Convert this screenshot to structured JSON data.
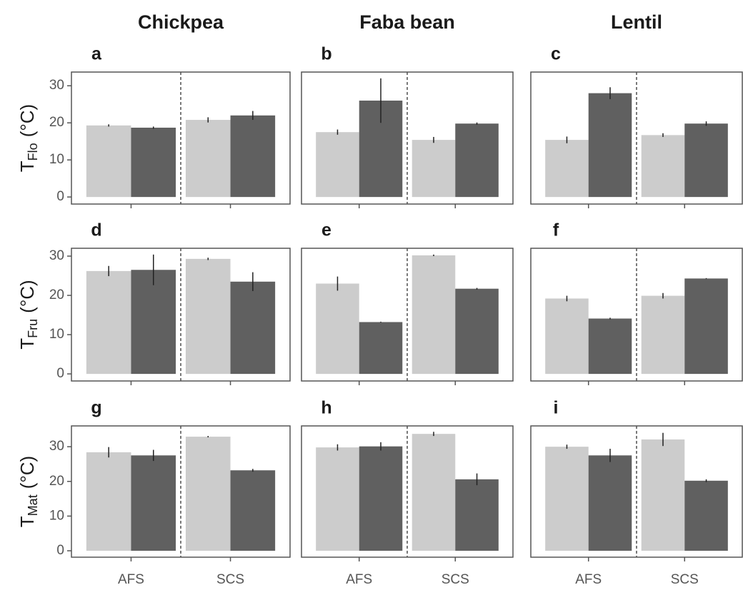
{
  "column_titles": [
    "Chickpea",
    "Faba bean",
    "Lentil"
  ],
  "row_labels": [
    {
      "main": "T",
      "sub": "Flo",
      "unit": "(°C)"
    },
    {
      "main": "T",
      "sub": "Fru",
      "unit": "(°C)"
    },
    {
      "main": "T",
      "sub": "Mat",
      "unit": "(°C)"
    }
  ],
  "chart_data": [
    {
      "type": "bar",
      "label": "a",
      "ylim": [
        -1.9,
        33.7
      ],
      "yticks": [
        0,
        10,
        20,
        30
      ],
      "series": [
        {
          "color": "#cccccc",
          "values": [
            19.3,
            20.8
          ],
          "errors": [
            0.3,
            0.7
          ]
        },
        {
          "color": "#606060",
          "values": [
            18.7,
            22
          ],
          "errors": [
            0.3,
            1.2
          ]
        }
      ]
    },
    {
      "type": "bar",
      "label": "b",
      "ylim": [
        -1.9,
        33.7
      ],
      "series": [
        {
          "color": "#cccccc",
          "values": [
            17.5,
            15.4
          ],
          "errors": [
            0.7,
            0.8
          ]
        },
        {
          "color": "#606060",
          "values": [
            26,
            19.8
          ],
          "errors": [
            6,
            0.3
          ]
        }
      ]
    },
    {
      "type": "bar",
      "label": "c",
      "ylim": [
        -1.9,
        33.7
      ],
      "series": [
        {
          "color": "#cccccc",
          "values": [
            15.4,
            16.7
          ],
          "errors": [
            0.9,
            0.5
          ]
        },
        {
          "color": "#606060",
          "values": [
            28,
            19.8
          ],
          "errors": [
            1.6,
            0.6
          ]
        }
      ]
    },
    {
      "type": "bar",
      "label": "d",
      "ylim": [
        -1.8,
        32
      ],
      "yticks": [
        0,
        10,
        20,
        30
      ],
      "series": [
        {
          "color": "#cccccc",
          "values": [
            26.2,
            29.3
          ],
          "errors": [
            1.3,
            0.3
          ]
        },
        {
          "color": "#606060",
          "values": [
            26.5,
            23.5
          ],
          "errors": [
            3.9,
            2.4
          ]
        }
      ]
    },
    {
      "type": "bar",
      "label": "e",
      "ylim": [
        -1.8,
        32
      ],
      "series": [
        {
          "color": "#cccccc",
          "values": [
            23,
            30.2
          ],
          "errors": [
            1.8,
            0.2
          ]
        },
        {
          "color": "#606060",
          "values": [
            13.2,
            21.7
          ],
          "errors": [
            0.1,
            0.2
          ]
        }
      ]
    },
    {
      "type": "bar",
      "label": "f",
      "ylim": [
        -1.8,
        32
      ],
      "series": [
        {
          "color": "#cccccc",
          "values": [
            19.2,
            19.9
          ],
          "errors": [
            0.7,
            0.7
          ]
        },
        {
          "color": "#606060",
          "values": [
            14.1,
            24.3
          ],
          "errors": [
            0.2,
            0.1
          ]
        }
      ]
    },
    {
      "type": "bar",
      "label": "g",
      "ylim": [
        -1.85,
        36
      ],
      "yticks": [
        0,
        10,
        20,
        30
      ],
      "categories": [
        "AFS",
        "SCS"
      ],
      "series": [
        {
          "color": "#cccccc",
          "values": [
            28.4,
            32.9
          ],
          "errors": [
            1.5,
            0.2
          ]
        },
        {
          "color": "#606060",
          "values": [
            27.5,
            23.2
          ],
          "errors": [
            1.6,
            0.4
          ]
        }
      ]
    },
    {
      "type": "bar",
      "label": "h",
      "ylim": [
        -1.85,
        36
      ],
      "categories": [
        "AFS",
        "SCS"
      ],
      "series": [
        {
          "color": "#cccccc",
          "values": [
            29.8,
            33.7
          ],
          "errors": [
            0.9,
            0.6
          ]
        },
        {
          "color": "#606060",
          "values": [
            30.1,
            20.6
          ],
          "errors": [
            1.2,
            1.7
          ]
        }
      ]
    },
    {
      "type": "bar",
      "label": "i",
      "ylim": [
        -1.85,
        36
      ],
      "categories": [
        "AFS",
        "SCS"
      ],
      "series": [
        {
          "color": "#cccccc",
          "values": [
            30,
            32.1
          ],
          "errors": [
            0.6,
            1.9
          ]
        },
        {
          "color": "#606060",
          "values": [
            27.5,
            20.2
          ],
          "errors": [
            1.9,
            0.4
          ]
        }
      ]
    }
  ]
}
